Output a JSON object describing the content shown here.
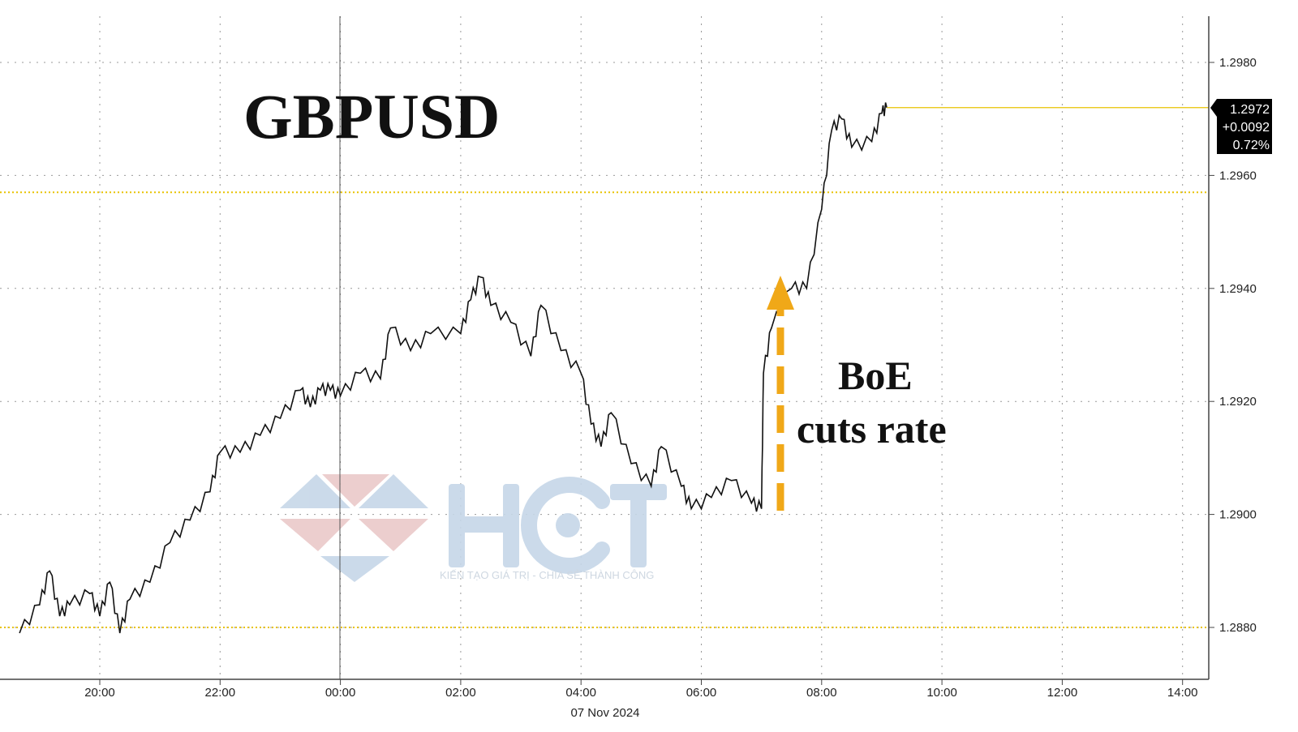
{
  "chart_data": {
    "type": "line",
    "title": "GBPUSD",
    "xlabel": "07 Nov 2024",
    "ylabel": "",
    "x_ticks": [
      "20:00",
      "22:00",
      "00:00",
      "02:00",
      "04:00",
      "06:00",
      "08:00",
      "10:00",
      "12:00",
      "14:00"
    ],
    "y_ticks": [
      "1.2880",
      "1.2900",
      "1.2920",
      "1.2940",
      "1.2960",
      "1.2980"
    ],
    "ylim": [
      1.2872,
      1.2988
    ],
    "grid": true,
    "series": [
      {
        "x": [
          "18:40",
          "19:00",
          "19:10",
          "19:20",
          "19:30",
          "19:50",
          "20:00",
          "20:10",
          "20:20",
          "20:30",
          "20:50",
          "21:10",
          "21:30",
          "21:50",
          "22:00",
          "22:20",
          "22:40",
          "23:00",
          "23:20",
          "23:30",
          "23:40",
          "23:50",
          "00:00",
          "00:20",
          "00:40",
          "00:50",
          "01:10",
          "01:30",
          "02:00",
          "02:10",
          "02:20",
          "02:30",
          "02:50",
          "03:10",
          "03:20",
          "03:40",
          "04:00",
          "04:10",
          "04:20",
          "04:30",
          "04:50",
          "05:10",
          "05:20",
          "05:40",
          "05:50",
          "06:10",
          "06:30",
          "06:50",
          "07:00",
          "07:02",
          "07:10",
          "07:30",
          "07:45",
          "08:00",
          "08:10",
          "08:20",
          "08:30",
          "08:50",
          "09:00",
          "09:05"
        ],
        "values": [
          1.2879,
          1.2884,
          1.289,
          1.2882,
          1.2884,
          1.2886,
          1.2882,
          1.2888,
          1.2879,
          1.2885,
          1.2888,
          1.2895,
          1.2899,
          1.2904,
          1.2911,
          1.2911,
          1.2914,
          1.2917,
          1.2922,
          1.2919,
          1.2922,
          1.2922,
          1.2921,
          1.2925,
          1.2924,
          1.2933,
          1.2929,
          1.2932,
          1.2932,
          1.2938,
          1.2942,
          1.2937,
          1.2934,
          1.2928,
          1.2937,
          1.2929,
          1.2925,
          1.2916,
          1.2912,
          1.2918,
          1.2909,
          1.2905,
          1.2912,
          1.2905,
          1.2901,
          1.2903,
          1.2906,
          1.2902,
          1.2901,
          1.2925,
          1.2933,
          1.294,
          1.294,
          1.2954,
          1.2968,
          1.297,
          1.2965,
          1.2966,
          1.2971,
          1.2972
        ]
      }
    ],
    "reference_lines": [
      1.2957,
      1.288
    ],
    "last_price": {
      "value": "1.2972",
      "change": "+0.0092",
      "percent": "0.72%"
    },
    "annotations": {
      "event_line1": "BoE",
      "event_line2": "cuts rate"
    },
    "colors": {
      "price": "#111111",
      "reference": "#e8c200",
      "arrow": "#f0a818",
      "box": "#000000"
    }
  },
  "watermark": {
    "logo": "HCT",
    "tagline": "KIẾN TẠO GIÁ TRỊ - CHIA SẺ THÀNH CÔNG"
  }
}
